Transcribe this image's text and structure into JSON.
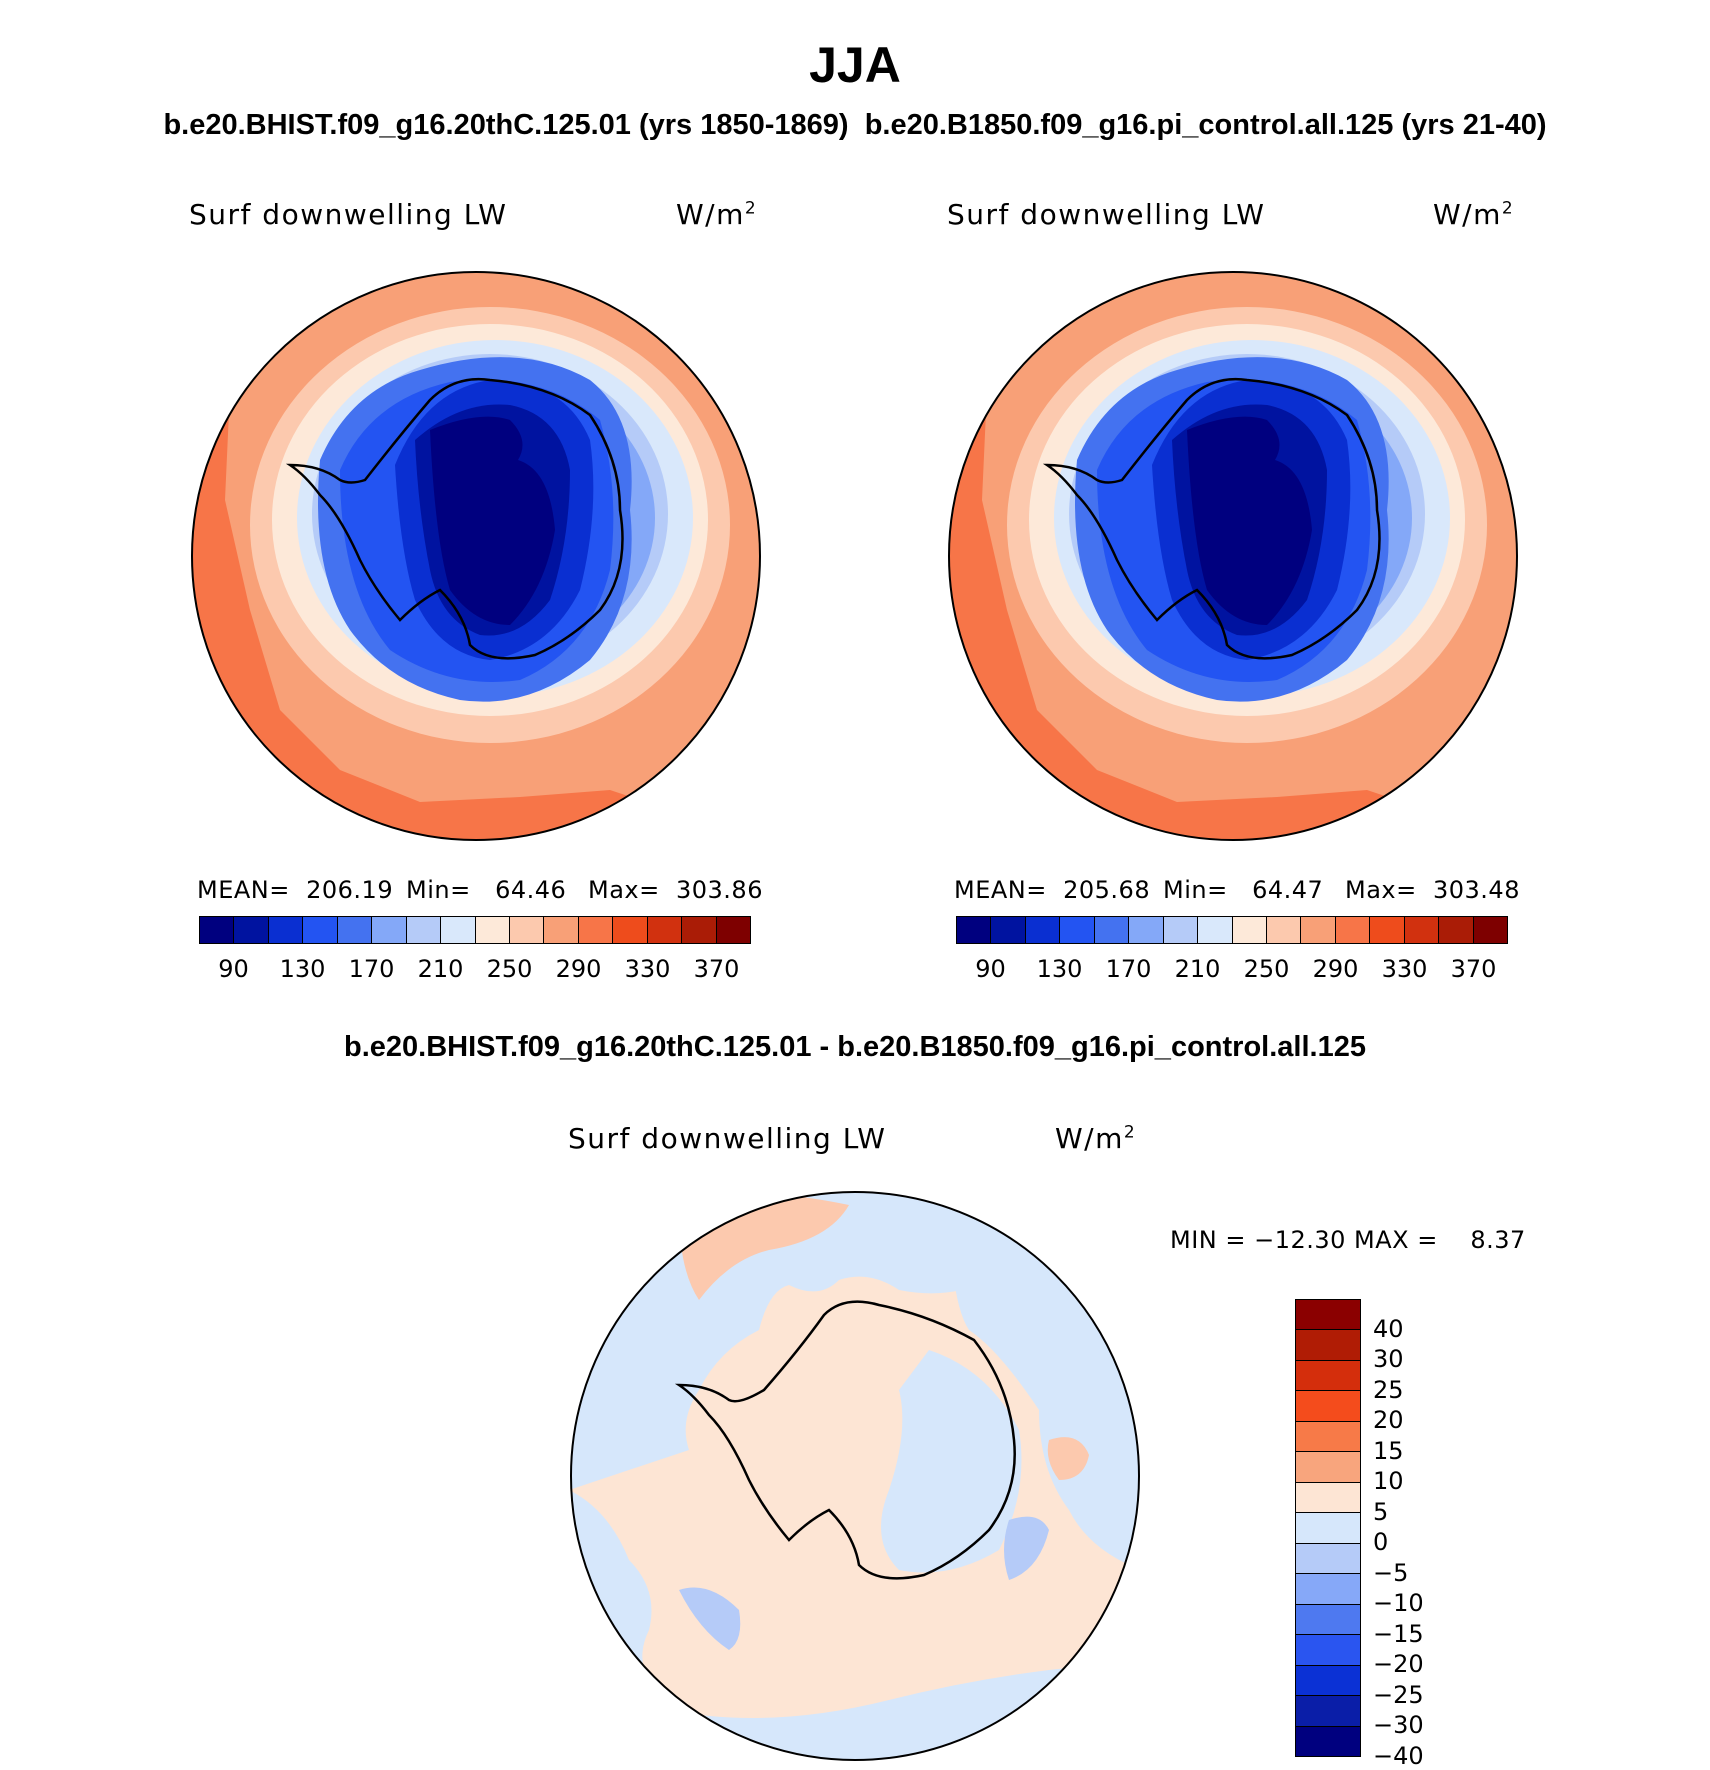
{
  "title": "JJA",
  "top_subtitle_left": "b.e20.BHIST.f09_g16.20thC.125.01 (yrs 1850-1869)",
  "top_subtitle_right": "b.e20.B1850.f09_g16.pi_control.all.125 (yrs 21-40)",
  "diff_subtitle": "b.e20.BHIST.f09_g16.20thC.125.01 - b.e20.B1850.f09_g16.pi_control.all.125",
  "panels": [
    {
      "variable": "Surf downwelling LW",
      "units": "W/m",
      "units_exp": "2",
      "mean_text": "MEAN=  206.19",
      "min_text": "Min=   64.46",
      "max_text": "Max=  303.86"
    },
    {
      "variable": "Surf downwelling LW",
      "units": "W/m",
      "units_exp": "2",
      "mean_text": "MEAN=  205.68",
      "min_text": "Min=   64.47",
      "max_text": "Max=  303.48"
    }
  ],
  "diff_panel": {
    "variable": "Surf downwelling LW",
    "units": "W/m",
    "units_exp": "2",
    "minmax_text": "MIN = −12.30 MAX =    8.37"
  },
  "colorbar_abs": {
    "colors": [
      "#00007f",
      "#0013a0",
      "#0a2fd1",
      "#2354f2",
      "#4472f0",
      "#84a8f8",
      "#b5cbf8",
      "#d9e8fb",
      "#fde9d9",
      "#fcc9ae",
      "#f8a077",
      "#f77548",
      "#ee4c1c",
      "#d1310f",
      "#aa1c06",
      "#7e0000"
    ],
    "ticks": [
      "90",
      "130",
      "170",
      "210",
      "250",
      "290",
      "330",
      "370"
    ]
  },
  "colorbar_diff": {
    "colors_top_to_bottom": [
      "#8b0000",
      "#b01c05",
      "#d42e0c",
      "#f44c1c",
      "#f77a48",
      "#f8a57d",
      "#fde5d4",
      "#d6e7fb",
      "#b5cbf8",
      "#86a8f8",
      "#4e79f0",
      "#2a55f0",
      "#0b31d5",
      "#0a1ea8",
      "#00007f"
    ],
    "ticks": [
      "40",
      "30",
      "25",
      "20",
      "15",
      "10",
      "5",
      "0",
      "−5",
      "−10",
      "−15",
      "−20",
      "−25",
      "−30",
      "−40"
    ]
  }
}
